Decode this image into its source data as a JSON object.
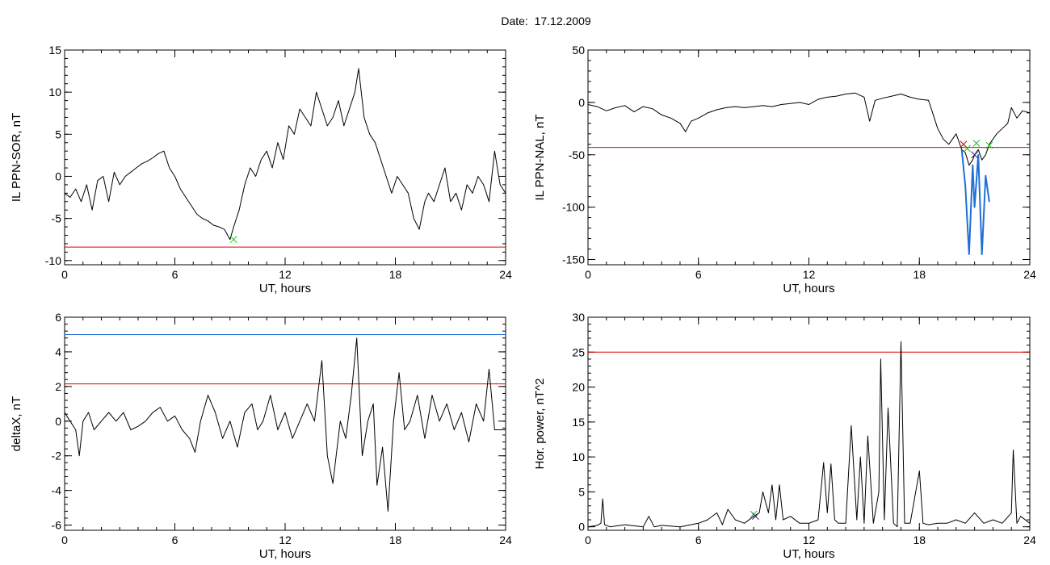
{
  "header": {
    "date_label": "Date:",
    "date_value": "17.12.2009"
  },
  "colors": {
    "trace": "#000000",
    "red_line": "#dd0000",
    "blue_line": "#1f6fd6",
    "green_marker": "#22bb22",
    "red_marker": "#dd0000",
    "navy_marker": "#2a1a80"
  },
  "chart_data": [
    {
      "type": "line",
      "xlabel": "UT, hours",
      "ylabel": "IL PPN-SOR, nT",
      "xlim": [
        0,
        24
      ],
      "ylim": [
        -10.5,
        15
      ],
      "xticks": [
        0,
        6,
        12,
        18,
        24
      ],
      "yticks": [
        -10,
        -5,
        0,
        5,
        10,
        15
      ],
      "series": [
        {
          "color": "#000000",
          "x": [
            0,
            0.3,
            0.6,
            0.9,
            1.2,
            1.5,
            1.8,
            2.1,
            2.4,
            2.7,
            3,
            3.3,
            3.6,
            3.9,
            4.2,
            4.5,
            4.8,
            5.1,
            5.4,
            5.7,
            6,
            6.3,
            6.6,
            6.9,
            7.2,
            7.5,
            7.8,
            8.1,
            8.4,
            8.7,
            9,
            9.2,
            9.5,
            9.8,
            10.1,
            10.4,
            10.7,
            11,
            11.3,
            11.6,
            11.9,
            12.2,
            12.5,
            12.8,
            13.1,
            13.4,
            13.7,
            14,
            14.3,
            14.6,
            14.9,
            15.2,
            15.5,
            15.8,
            16,
            16.3,
            16.6,
            16.9,
            17.2,
            17.5,
            17.8,
            18.1,
            18.4,
            18.7,
            19,
            19.3,
            19.6,
            19.8,
            20.1,
            20.4,
            20.7,
            21,
            21.3,
            21.6,
            21.9,
            22.2,
            22.5,
            22.8,
            23.1,
            23.4,
            23.7,
            24
          ],
          "y": [
            -2,
            -2.5,
            -1.5,
            -3,
            -1,
            -4,
            -0.5,
            0,
            -3,
            0.5,
            -1,
            0,
            0.5,
            1,
            1.5,
            1.8,
            2.2,
            2.7,
            3,
            1,
            0,
            -1.5,
            -2.5,
            -3.5,
            -4.5,
            -5,
            -5.3,
            -5.8,
            -6,
            -6.3,
            -7.5,
            -6,
            -4,
            -1,
            1,
            0,
            2,
            3,
            1,
            4,
            2,
            6,
            5,
            8,
            7,
            6,
            10,
            8,
            6,
            7,
            9,
            6,
            8,
            10,
            12.8,
            7,
            5,
            4,
            2,
            0,
            -2,
            0,
            -1,
            -2,
            -5,
            -6.3,
            -3,
            -2,
            -3,
            -1,
            1,
            -3,
            -2,
            -4,
            -1,
            -2,
            0,
            -1,
            -3,
            3,
            -1,
            -2
          ]
        }
      ],
      "h_lines": [
        {
          "y": -8.4,
          "color": "#dd0000"
        }
      ],
      "markers": [
        {
          "x": 9.2,
          "y": -7.5,
          "symbol": "x",
          "color": "#22bb22"
        }
      ]
    },
    {
      "type": "line",
      "xlabel": "UT, hours",
      "ylabel": "IL PPN-NAL, nT",
      "xlim": [
        0,
        24
      ],
      "ylim": [
        -155,
        50
      ],
      "xticks": [
        0,
        6,
        12,
        18,
        24
      ],
      "yticks": [
        -150,
        -100,
        -50,
        0,
        50
      ],
      "series": [
        {
          "color": "#000000",
          "x": [
            0,
            0.5,
            1,
            1.5,
            2,
            2.5,
            3,
            3.5,
            4,
            4.5,
            5,
            5.3,
            5.6,
            6,
            6.5,
            7,
            7.5,
            8,
            8.5,
            9,
            9.5,
            10,
            10.5,
            11,
            11.5,
            12,
            12.5,
            13,
            13.5,
            14,
            14.5,
            15,
            15.3,
            15.6,
            16,
            16.5,
            17,
            17.5,
            18,
            18.5,
            19,
            19.3,
            19.6,
            20,
            20.3,
            20.5,
            20.7,
            20.9,
            21,
            21.2,
            21.4,
            21.6,
            21.8,
            22,
            22.2,
            22.5,
            22.8,
            23,
            23.3,
            23.6,
            24
          ],
          "y": [
            -2,
            -4,
            -8,
            -5,
            -3,
            -9,
            -4,
            -6,
            -12,
            -15,
            -20,
            -28,
            -18,
            -15,
            -10,
            -7,
            -5,
            -4,
            -5,
            -4,
            -3,
            -4,
            -2,
            -1,
            0,
            -2,
            3,
            5,
            6,
            8,
            9,
            5,
            -18,
            2,
            4,
            6,
            8,
            5,
            3,
            2,
            -25,
            -35,
            -40,
            -30,
            -45,
            -48,
            -60,
            -55,
            -50,
            -45,
            -55,
            -50,
            -40,
            -35,
            -30,
            -25,
            -20,
            -5,
            -15,
            -8,
            -10
          ]
        },
        {
          "color": "#1f6fd6",
          "x": [
            20.3,
            20.5,
            20.7,
            20.9,
            21,
            21.2,
            21.4,
            21.6,
            21.8
          ],
          "y": [
            -45,
            -80,
            -145,
            -60,
            -100,
            -50,
            -145,
            -70,
            -95
          ]
        }
      ],
      "h_lines": [
        {
          "y": -43,
          "color": "#dd0000"
        }
      ],
      "markers": [
        {
          "x": 20.4,
          "y": -40,
          "symbol": "x",
          "color": "#dd0000"
        },
        {
          "x": 20.6,
          "y": -44,
          "symbol": "x",
          "color": "#22bb22"
        },
        {
          "x": 21.0,
          "y": -50,
          "symbol": "x",
          "color": "#2a1a80"
        },
        {
          "x": 21.1,
          "y": -39,
          "symbol": "x",
          "color": "#22bb22"
        },
        {
          "x": 21.8,
          "y": -41,
          "symbol": "x",
          "color": "#22bb22"
        }
      ]
    },
    {
      "type": "line",
      "xlabel": "UT, hours",
      "ylabel": "deltaX, nT",
      "xlim": [
        0,
        24
      ],
      "ylim": [
        -6.3,
        6
      ],
      "xticks": [
        0,
        6,
        12,
        18,
        24
      ],
      "yticks": [
        -6,
        -4,
        -2,
        0,
        2,
        4,
        6
      ],
      "series": [
        {
          "color": "#000000",
          "x": [
            0,
            0.3,
            0.6,
            0.8,
            1,
            1.3,
            1.6,
            2,
            2.4,
            2.8,
            3.2,
            3.6,
            4,
            4.4,
            4.8,
            5.2,
            5.6,
            6,
            6.4,
            6.8,
            7.1,
            7.4,
            7.8,
            8.2,
            8.6,
            9,
            9.4,
            9.8,
            10.2,
            10.5,
            10.8,
            11.2,
            11.6,
            12,
            12.4,
            12.8,
            13.2,
            13.6,
            14,
            14.3,
            14.6,
            15,
            15.3,
            15.6,
            15.9,
            16.2,
            16.5,
            16.8,
            17,
            17.3,
            17.6,
            17.9,
            18.2,
            18.5,
            18.8,
            19.2,
            19.6,
            20,
            20.4,
            20.8,
            21.2,
            21.6,
            22,
            22.4,
            22.8,
            23.1,
            23.4,
            23.7,
            24
          ],
          "y": [
            0.5,
            0,
            -0.5,
            -2,
            0,
            0.5,
            -0.5,
            0,
            0.5,
            0,
            0.5,
            -0.5,
            -0.3,
            0,
            0.5,
            0.8,
            0,
            0.3,
            -0.5,
            -1,
            -1.8,
            0,
            1.5,
            0.5,
            -1,
            0,
            -1.5,
            0.5,
            1,
            -0.5,
            0,
            1.5,
            -0.5,
            0.5,
            -1,
            0,
            1,
            0,
            3.5,
            -2,
            -3.6,
            0,
            -1,
            1.5,
            4.8,
            -2,
            0,
            1,
            -3.7,
            -1.5,
            -5.2,
            0,
            2.8,
            -0.5,
            0,
            1.5,
            -1,
            1.5,
            0,
            1,
            -0.5,
            0.5,
            -1.2,
            1,
            0,
            3,
            -0.5,
            -0.5,
            -0.5
          ]
        }
      ],
      "h_lines": [
        {
          "y": 5.0,
          "color": "#1f6fd6"
        },
        {
          "y": 2.15,
          "color": "#dd0000"
        }
      ],
      "markers": []
    },
    {
      "type": "line",
      "xlabel": "UT, hours",
      "ylabel": "Hor. power, nT^2",
      "xlim": [
        0,
        24
      ],
      "ylim": [
        -0.5,
        30
      ],
      "xticks": [
        0,
        6,
        12,
        18,
        24
      ],
      "yticks": [
        0,
        5,
        10,
        15,
        20,
        25,
        30
      ],
      "series": [
        {
          "color": "#000000",
          "x": [
            0,
            0.5,
            0.7,
            0.8,
            0.9,
            1.2,
            2,
            3,
            3.3,
            3.6,
            4,
            5,
            6,
            6.5,
            7,
            7.3,
            7.6,
            8,
            8.5,
            9,
            9.3,
            9.5,
            9.8,
            10,
            10.2,
            10.4,
            10.6,
            11,
            11.5,
            12,
            12.5,
            12.8,
            13,
            13.2,
            13.4,
            13.6,
            14,
            14.3,
            14.6,
            14.8,
            15,
            15.2,
            15.5,
            15.8,
            15.9,
            16.1,
            16.3,
            16.6,
            16.8,
            17,
            17.2,
            17.5,
            18,
            18.2,
            18.5,
            19,
            19.5,
            20,
            20.5,
            21,
            21.5,
            22,
            22.5,
            23,
            23.1,
            23.3,
            23.5,
            24
          ],
          "y": [
            0,
            0.2,
            0.5,
            4,
            0.3,
            0,
            0.3,
            0,
            1.5,
            0,
            0.2,
            0,
            0.5,
            1,
            2,
            0.3,
            2.5,
            1,
            0.5,
            1.5,
            2,
            5,
            2,
            6,
            1,
            6,
            1,
            1.5,
            0.5,
            0.5,
            1,
            9.2,
            2,
            9,
            1,
            0.5,
            0.5,
            14.5,
            1,
            10,
            0.5,
            13,
            0.5,
            5,
            24,
            1,
            17,
            0.5,
            0,
            26.5,
            0.5,
            0.5,
            8,
            0.5,
            0.3,
            0.5,
            0.5,
            1,
            0.5,
            2,
            0.5,
            1,
            0.5,
            2,
            11,
            0.5,
            1.5,
            0.5
          ]
        }
      ],
      "h_lines": [
        {
          "y": 25,
          "color": "#dd0000"
        }
      ],
      "markers": [
        {
          "x": 9.0,
          "y": 1.8,
          "symbol": "x",
          "color": "#22bb22"
        },
        {
          "x": 9.1,
          "y": 1.5,
          "symbol": "x",
          "color": "#2a1a80"
        }
      ]
    }
  ]
}
